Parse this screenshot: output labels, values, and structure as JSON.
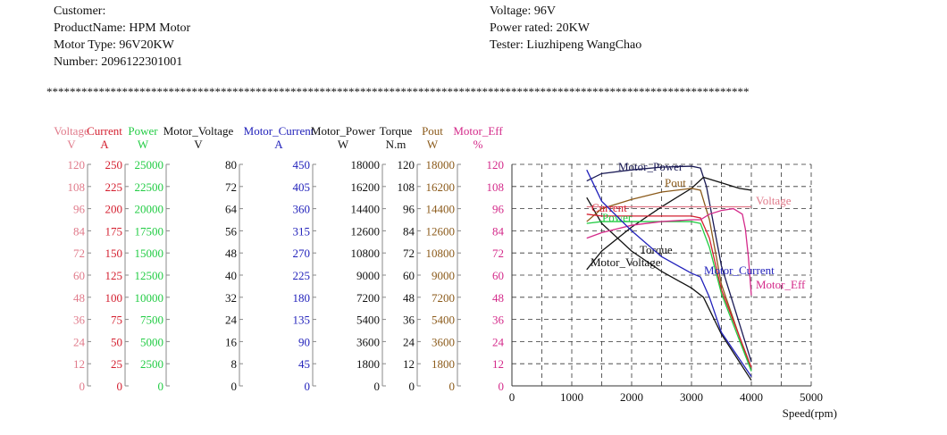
{
  "header": {
    "left": [
      "Customer:",
      "ProductName: HPM Motor",
      "Motor Type: 96V20KW",
      "Number: 2096122301001"
    ],
    "right": [
      "Voltage: 96V",
      "Power rated: 20KW",
      "Tester: Liuzhipeng WangChao"
    ],
    "separator": "*************************************************************************************************************************"
  },
  "chart_data": {
    "type": "line",
    "xlabel": "Speed(rpm)",
    "xlim": [
      0,
      5000
    ],
    "xticks": [
      0,
      1000,
      2000,
      3000,
      4000,
      5000
    ],
    "grid": true,
    "axes": [
      {
        "name": "Voltage",
        "unit": "V",
        "color": "#e07a8a",
        "ticks": [
          "120",
          "108",
          "96",
          "84",
          "72",
          "60",
          "48",
          "36",
          "24",
          "12",
          "0"
        ]
      },
      {
        "name": "Current",
        "unit": "A",
        "color": "#d42030",
        "ticks": [
          "250",
          "225",
          "200",
          "175",
          "150",
          "125",
          "100",
          "75",
          "50",
          "25",
          "0"
        ]
      },
      {
        "name": "Power",
        "unit": "W",
        "color": "#22cc44",
        "ticks": [
          "25000",
          "22500",
          "20000",
          "17500",
          "15000",
          "12500",
          "10000",
          "7500",
          "5000",
          "2500",
          "0"
        ]
      },
      {
        "name": "Motor_Voltage",
        "unit": "V",
        "color": "#111111",
        "ticks": [
          "80",
          "72",
          "64",
          "56",
          "48",
          "40",
          "32",
          "24",
          "16",
          "8",
          "0"
        ]
      },
      {
        "name": "Motor_Current",
        "unit": "A",
        "color": "#2222bb",
        "ticks": [
          "450",
          "405",
          "360",
          "315",
          "270",
          "225",
          "180",
          "135",
          "90",
          "45",
          "0"
        ]
      },
      {
        "name": "Motor_Power",
        "unit": "W",
        "color": "#111111",
        "ticks": [
          "18000",
          "16200",
          "14400",
          "12600",
          "10800",
          "9000",
          "7200",
          "5400",
          "3600",
          "1800",
          "0"
        ]
      },
      {
        "name": "Torque",
        "unit": "N.m",
        "color": "#111111",
        "ticks": [
          "120",
          "108",
          "96",
          "84",
          "72",
          "60",
          "48",
          "36",
          "24",
          "12",
          "0"
        ]
      },
      {
        "name": "Pout",
        "unit": "W",
        "color": "#8b5a1a",
        "ticks": [
          "18000",
          "16200",
          "14400",
          "12600",
          "10800",
          "9000",
          "7200",
          "5400",
          "3600",
          "1800",
          "0"
        ]
      },
      {
        "name": "Motor_Eff",
        "unit": "%",
        "color": "#d42a8a",
        "ticks": [
          "120",
          "108",
          "96",
          "84",
          "72",
          "60",
          "48",
          "36",
          "24",
          "12",
          "0"
        ]
      }
    ],
    "series_scale": "values in 0-120 normalized plot units",
    "series": [
      {
        "name": "Motor_Power",
        "label": "Motor_Power",
        "color": "#1a1a55",
        "x": [
          1250,
          1500,
          2000,
          2500,
          3000,
          3150,
          3250,
          3500,
          4000
        ],
        "y": [
          111,
          115,
          117,
          118.5,
          119,
          118,
          108,
          65,
          13
        ]
      },
      {
        "name": "Motor_Voltage",
        "label": "Motor_Voltage",
        "color": "#111111",
        "x": [
          1250,
          1500,
          2000,
          2500,
          3000,
          3200,
          3500,
          3800,
          4000
        ],
        "y": [
          63,
          73,
          86,
          97,
          107,
          113,
          110,
          107,
          106
        ]
      },
      {
        "name": "Torque",
        "label": "Torque",
        "color": "#111111",
        "x": [
          1250,
          1500,
          2000,
          2500,
          3000,
          3200,
          3500,
          4000
        ],
        "y": [
          102,
          88,
          73,
          62,
          53,
          48,
          28,
          3
        ]
      },
      {
        "name": "Pout",
        "label": "Pout",
        "color": "#8b5a1a",
        "x": [
          1250,
          1500,
          2000,
          2500,
          3000,
          3150,
          3300,
          3500,
          4000
        ],
        "y": [
          89,
          96,
          101,
          105,
          107,
          106,
          90,
          55,
          8
        ]
      },
      {
        "name": "Voltage",
        "label": "Voltage",
        "color": "#e07a8a",
        "x": [
          1250,
          1600,
          4000
        ],
        "y": [
          97,
          97,
          97
        ]
      },
      {
        "name": "Current",
        "label": "Current",
        "color": "#d42030",
        "x": [
          1250,
          1500,
          3000,
          3150,
          3300,
          3500,
          4000
        ],
        "y": [
          93,
          92,
          92,
          91,
          80,
          52,
          10
        ]
      },
      {
        "name": "Power",
        "label": "Power",
        "color": "#22cc44",
        "x": [
          1250,
          1500,
          3000,
          3150,
          3300,
          3500,
          4000
        ],
        "y": [
          88,
          89,
          89,
          88,
          75,
          50,
          8
        ]
      },
      {
        "name": "Motor_Eff",
        "label": "Motor_Eff",
        "color": "#d42a8a",
        "x": [
          1250,
          1500,
          2000,
          2500,
          3000,
          3150,
          3300,
          3500,
          3700,
          3850,
          3900,
          3950,
          4000
        ],
        "y": [
          80,
          83,
          87,
          89,
          90,
          90,
          93,
          95,
          96,
          93,
          85,
          70,
          49
        ]
      },
      {
        "name": "Motor_Current",
        "label": "Motor_Current",
        "color": "#2222bb",
        "x": [
          1250,
          1500,
          2000,
          2500,
          3000,
          3150,
          3300,
          3500,
          4000
        ],
        "y": [
          117,
          100,
          84,
          70,
          61,
          59,
          48,
          29,
          5
        ]
      }
    ]
  }
}
